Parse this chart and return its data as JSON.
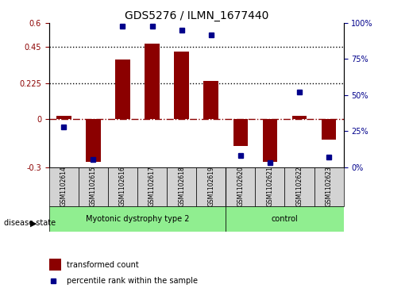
{
  "title": "GDS5276 / ILMN_1677440",
  "samples": [
    "GSM1102614",
    "GSM1102615",
    "GSM1102616",
    "GSM1102617",
    "GSM1102618",
    "GSM1102619",
    "GSM1102620",
    "GSM1102621",
    "GSM1102622",
    "GSM1102623"
  ],
  "transformed_count": [
    0.02,
    -0.27,
    0.37,
    0.47,
    0.42,
    0.24,
    -0.17,
    -0.27,
    0.02,
    -0.13
  ],
  "percentile_rank": [
    28,
    5,
    98,
    98,
    95,
    92,
    8,
    3,
    52,
    7
  ],
  "groups": [
    {
      "label": "Myotonic dystrophy type 2",
      "start": 0,
      "end": 6,
      "color": "#90EE90"
    },
    {
      "label": "control",
      "start": 6,
      "end": 10,
      "color": "#90EE90"
    }
  ],
  "group_boundaries": [
    6
  ],
  "ylim_left": [
    -0.3,
    0.6
  ],
  "ylim_right": [
    0,
    100
  ],
  "yticks_left": [
    -0.3,
    0.0,
    0.225,
    0.45,
    0.6
  ],
  "yticks_right": [
    0,
    25,
    50,
    75,
    100
  ],
  "ytick_labels_left": [
    "-0.3",
    "0",
    "0.225",
    "0.45",
    "0.6"
  ],
  "ytick_labels_right": [
    "0%",
    "25%",
    "50%",
    "75%",
    "100%"
  ],
  "hlines": [
    0.225,
    0.45
  ],
  "bar_color": "#8B0000",
  "point_color": "#00008B",
  "dashed_color": "#8B0000",
  "group_label_text": "disease state",
  "legend_bar_label": "transformed count",
  "legend_point_label": "percentile rank within the sample",
  "left_tick_color": "#8B0000",
  "right_tick_color": "#00008B"
}
